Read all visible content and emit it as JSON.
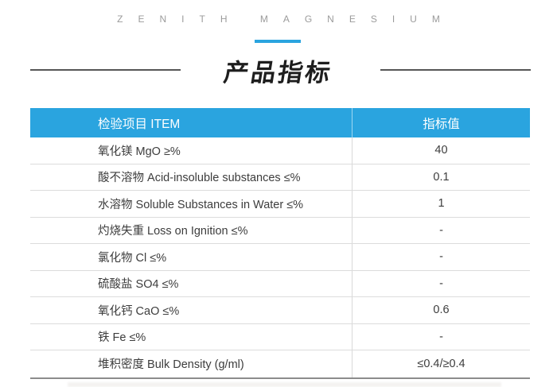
{
  "theme": {
    "accent": "#2aa4df",
    "muted": "#9b9b9b"
  },
  "brand": {
    "wordmark": "ZENITH MAGNESIUM"
  },
  "section": {
    "title": "产品指标"
  },
  "table": {
    "columns": [
      {
        "label": "检验项目 ITEM"
      },
      {
        "label": "指标值"
      }
    ],
    "rows": [
      {
        "item": "氧化镁 MgO ≥%",
        "value": "40"
      },
      {
        "item": "酸不溶物 Acid-insoluble substances ≤%",
        "value": "0.1"
      },
      {
        "item": "水溶物 Soluble Substances in Water ≤%",
        "value": "1"
      },
      {
        "item": "灼烧失重 Loss on Ignition ≤%",
        "value": "-"
      },
      {
        "item": "氯化物 Cl ≤%",
        "value": "-"
      },
      {
        "item": "硫酸盐 SO4 ≤%",
        "value": "-"
      },
      {
        "item": "氧化钙 CaO ≤%",
        "value": "0.6"
      },
      {
        "item": "铁 Fe ≤%",
        "value": "-"
      },
      {
        "item": "堆积密度 Bulk Density (g/ml)",
        "value": "≤0.4/≥0.4"
      }
    ]
  }
}
